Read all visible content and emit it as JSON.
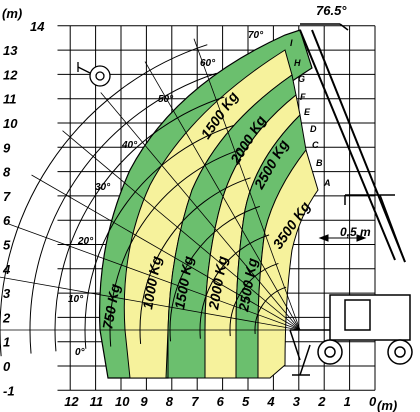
{
  "units": {
    "y": "(m)",
    "x": "(m)"
  },
  "y_ticks": [
    "14",
    "13",
    "12",
    "11",
    "10",
    "9",
    "8",
    "7",
    "6",
    "5",
    "4",
    "3",
    "2",
    "1",
    "0",
    "-1"
  ],
  "x_ticks": [
    "12",
    "11",
    "10",
    "9",
    "8",
    "7",
    "6",
    "5",
    "4",
    "3",
    "2",
    "1",
    "0"
  ],
  "boom_angles": [
    "0°",
    "10°",
    "20°",
    "30°",
    "40°",
    "50°",
    "60°",
    "70°"
  ],
  "max_angle": "76.5°",
  "extension_letters": [
    "A",
    "B",
    "C",
    "D",
    "E",
    "F",
    "G",
    "H",
    "I"
  ],
  "load_zones": [
    "750 Kg",
    "1000 Kg",
    "1500 Kg",
    "2000 Kg",
    "2500 Kg",
    "3500 Kg",
    "2500 Kg",
    "2000 Kg",
    "1500 Kg"
  ],
  "offset_dimension": "0,5 m",
  "colors": {
    "green": "#6bbf6e",
    "yellow": "#f6f29c",
    "grid": "#000000"
  },
  "icons": [
    "stabilizer-wheel-icon",
    "telehandler-machine-icon"
  ]
}
